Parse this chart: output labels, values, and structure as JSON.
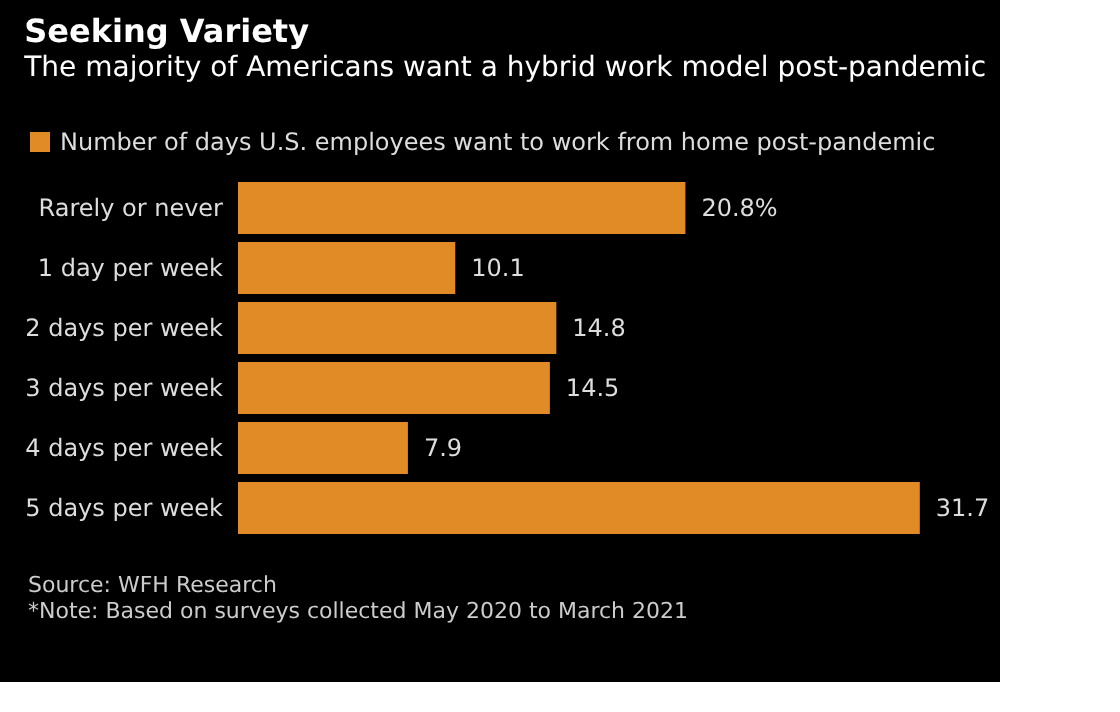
{
  "chart_data": {
    "type": "bar",
    "orientation": "horizontal",
    "title": "Seeking Variety",
    "subtitle": "The majority of Americans want a hybrid work model post-pandemic",
    "categories": [
      "Rarely or never",
      "1 day per week",
      "2 days per week",
      "3 days per week",
      "4 days per week",
      "5 days per week"
    ],
    "series": [
      {
        "name": "Number of days U.S. employees want to work from home post-pandemic",
        "color": "#e08b26",
        "values": [
          20.8,
          10.1,
          14.8,
          14.5,
          7.9,
          31.7
        ],
        "value_labels": [
          "20.8%",
          "10.1",
          "14.8",
          "14.5",
          "7.9",
          "31.7"
        ]
      }
    ],
    "legend": "top",
    "tick_labels": "y",
    "grid": false,
    "annotations": [
      "Source: WFH Research",
      "*Note: Based on surveys collected May 2020 to March 2021"
    ]
  }
}
